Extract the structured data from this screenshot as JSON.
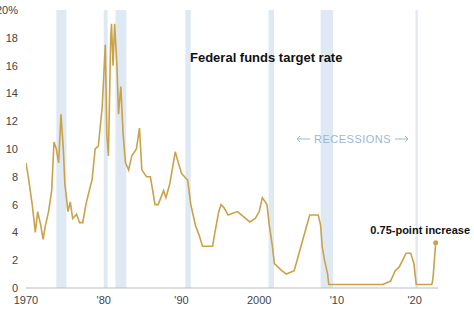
{
  "chart_data": {
    "type": "line",
    "title": "Federal funds target rate",
    "annotations": [
      "RECESSIONS",
      "0.75-point increase"
    ],
    "color": "#c9a24b",
    "grid": false,
    "xlim": [
      1970,
      2023
    ],
    "xticks": [
      {
        "value": 1970,
        "label": "1970"
      },
      {
        "value": 1980,
        "label": "'80"
      },
      {
        "value": 1990,
        "label": "'90"
      },
      {
        "value": 2000,
        "label": "2000"
      },
      {
        "value": 2010,
        "label": "'10"
      },
      {
        "value": 2020,
        "label": "'20"
      }
    ],
    "ylim": [
      0,
      20
    ],
    "yticks": [
      0,
      2,
      4,
      6,
      8,
      10,
      12,
      14,
      16,
      18,
      {
        "value": 20,
        "label": "20%"
      }
    ],
    "recessions": [
      {
        "start": 1973.9,
        "end": 1975.2
      },
      {
        "start": 1980.0,
        "end": 1980.5
      },
      {
        "start": 1981.5,
        "end": 1982.9
      },
      {
        "start": 1990.5,
        "end": 1991.2
      },
      {
        "start": 2001.2,
        "end": 2001.9
      },
      {
        "start": 2007.9,
        "end": 2009.5
      },
      {
        "start": 2020.1,
        "end": 2020.4
      }
    ],
    "x": [
      1970.0,
      1970.3,
      1970.8,
      1971.2,
      1971.5,
      1971.9,
      1972.2,
      1972.5,
      1972.9,
      1973.3,
      1973.6,
      1973.9,
      1974.2,
      1974.5,
      1974.8,
      1975.0,
      1975.4,
      1975.7,
      1976.0,
      1976.5,
      1976.9,
      1977.3,
      1977.7,
      1978.0,
      1978.5,
      1978.9,
      1979.3,
      1979.8,
      1980.2,
      1980.4,
      1980.6,
      1980.9,
      1981.0,
      1981.2,
      1981.4,
      1981.7,
      1981.9,
      1982.2,
      1982.5,
      1982.8,
      1983.2,
      1983.6,
      1984.2,
      1984.6,
      1984.9,
      1985.5,
      1986.0,
      1986.6,
      1987.0,
      1987.7,
      1988.0,
      1988.5,
      1989.2,
      1989.6,
      1990.0,
      1990.8,
      1991.2,
      1991.8,
      1992.3,
      1992.7,
      1994.0,
      1994.3,
      1994.8,
      1995.1,
      1995.5,
      1996.0,
      1997.2,
      1998.8,
      1999.5,
      2000.0,
      2000.4,
      2001.0,
      2001.3,
      2001.7,
      2001.95,
      2002.9,
      2003.5,
      2004.5,
      2005.0,
      2005.5,
      2006.0,
      2006.5,
      2007.6,
      2007.9,
      2008.1,
      2008.4,
      2008.8,
      2008.95,
      2015.9,
      2016.9,
      2017.5,
      2018.0,
      2018.9,
      2019.5,
      2019.9,
      2020.2,
      2022.2,
      2022.3,
      2022.4,
      2022.5,
      2022.6,
      2022.7
    ],
    "values": [
      9,
      8,
      6,
      4,
      5.5,
      4.5,
      3.5,
      4.5,
      5.5,
      7,
      10.5,
      10,
      9,
      12.5,
      10,
      7.5,
      5.5,
      6.2,
      5,
      5.3,
      4.7,
      4.7,
      6,
      6.7,
      7.8,
      10,
      10.2,
      13,
      17.5,
      11,
      9.5,
      18,
      19,
      16,
      19,
      16,
      12.5,
      14.5,
      11,
      9,
      8.5,
      9.5,
      10,
      11.5,
      8.5,
      8,
      8,
      6,
      6,
      7,
      6.5,
      7.5,
      9.8,
      9,
      8.25,
      7.75,
      6,
      4.5,
      3.75,
      3,
      3,
      4,
      5.5,
      6,
      5.75,
      5.25,
      5.5,
      4.75,
      5,
      5.5,
      6.5,
      6,
      4.5,
      3,
      1.75,
      1.25,
      1,
      1.25,
      2.25,
      3.25,
      4.25,
      5.25,
      5.25,
      4.5,
      3,
      2,
      1,
      0.25,
      0.25,
      0.5,
      1.25,
      1.5,
      2.5,
      2.5,
      1.75,
      0.25,
      0.25,
      0.5,
      1.0,
      1.75,
      2.5,
      3.25
    ]
  }
}
